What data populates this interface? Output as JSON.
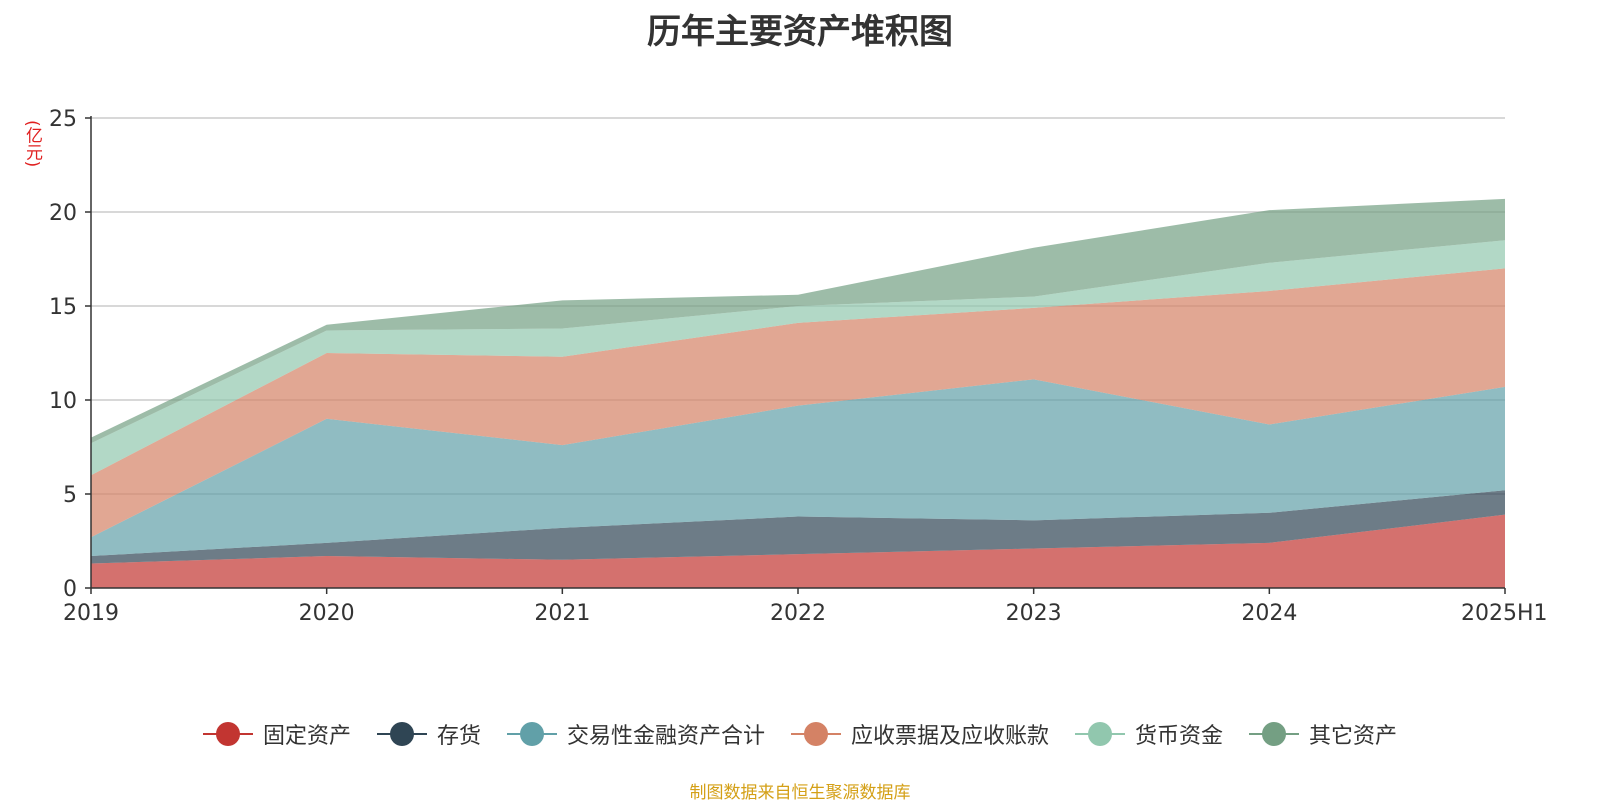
{
  "chart_data": {
    "type": "area",
    "title": "历年主要资产堆积图",
    "ylabel": "(亿元)",
    "xlabel": "",
    "categories": [
      "2019",
      "2020",
      "2021",
      "2022",
      "2023",
      "2024",
      "2025H1"
    ],
    "ylim": [
      0,
      25
    ],
    "yticks": [
      0,
      5,
      10,
      15,
      20,
      25
    ],
    "stacked": true,
    "grid": true,
    "legend_position": "bottom",
    "series": [
      {
        "name": "固定资产",
        "color": "#c23531",
        "values": [
          1.3,
          1.7,
          1.5,
          1.8,
          2.1,
          2.4,
          3.9
        ]
      },
      {
        "name": "存货",
        "color": "#2f4554",
        "values": [
          0.4,
          0.7,
          1.7,
          2.0,
          1.5,
          1.6,
          1.3
        ]
      },
      {
        "name": "交易性金融资产合计",
        "color": "#61a0a8",
        "values": [
          1.0,
          6.6,
          4.4,
          5.9,
          7.5,
          4.7,
          5.5
        ]
      },
      {
        "name": "应收票据及应收账款",
        "color": "#d48265",
        "values": [
          3.3,
          3.5,
          4.7,
          4.4,
          3.8,
          7.1,
          6.3
        ]
      },
      {
        "name": "货币资金",
        "color": "#91c7ae",
        "values": [
          1.7,
          1.2,
          1.5,
          0.9,
          0.6,
          1.5,
          1.5
        ]
      },
      {
        "name": "其它资产",
        "color": "#749f83",
        "values": [
          0.3,
          0.3,
          1.5,
          0.6,
          2.6,
          2.8,
          2.2
        ]
      }
    ]
  },
  "source_note": "制图数据来自恒生聚源数据库"
}
